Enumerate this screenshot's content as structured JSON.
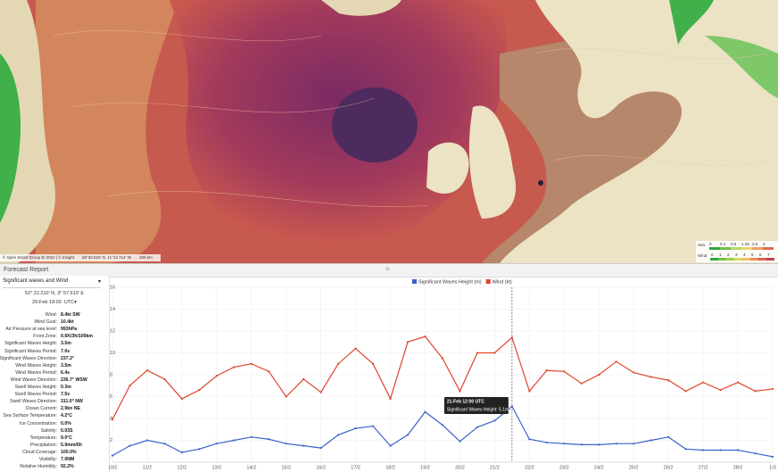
{
  "map": {
    "attribution": "© Spire Smart Group El 2022 | © Insight",
    "coordinates": "58°33.522' N, 11°13.714' W",
    "scale": "100 km",
    "legend": {
      "sea_label": "Sea",
      "sea_ticks": [
        0,
        0.1,
        0.5,
        1.25,
        2.5,
        4
      ],
      "wind_label": "Wind",
      "wind_ticks": [
        0,
        1,
        2,
        3,
        4,
        5,
        6,
        7
      ]
    }
  },
  "panel": {
    "title": "Forecast Report",
    "selector": "Significant waves and Wind",
    "position": "52° 22.210' N, 3° 57.619' E",
    "time": "20-Feb 18:00",
    "timezone": "UTC",
    "readings": [
      {
        "label": "Wind:",
        "value": "8.4kt SW"
      },
      {
        "label": "Wind Gust:",
        "value": "10.4kt"
      },
      {
        "label": "Air Pressure at sea level:",
        "value": "993hPa"
      },
      {
        "label": "Front Zone:",
        "value": "0.6K/3h/100km"
      },
      {
        "label": "Significant Waves Height:",
        "value": "3.5m"
      },
      {
        "label": "Significant Waves Period:",
        "value": "7.0s"
      },
      {
        "label": "Significant Waves Direction:",
        "value": "237.2°"
      },
      {
        "label": "Wind Waves Height:",
        "value": "3.5m"
      },
      {
        "label": "Wind Waves Period:",
        "value": "6.4s"
      },
      {
        "label": "Wind Waves Direction:",
        "value": "236.7° WSW"
      },
      {
        "label": "Swell Waves Height:",
        "value": "0.3m"
      },
      {
        "label": "Swell Waves Period:",
        "value": "7.5s"
      },
      {
        "label": "Swell Waves Direction:",
        "value": "311.0° NW"
      },
      {
        "label": "Ocean Current:",
        "value": "2.9kn NE"
      },
      {
        "label": "Sea Surface Temperature:",
        "value": "4.2°C"
      },
      {
        "label": "Ice Concentration:",
        "value": "0.0%"
      },
      {
        "label": "Salinity:",
        "value": "0.03S"
      },
      {
        "label": "Temperature:",
        "value": "9.0°C"
      },
      {
        "label": "Precipitation:",
        "value": "5.9mm/6h"
      },
      {
        "label": "Cloud Coverage:",
        "value": "100.0%"
      },
      {
        "label": "Visibility:",
        "value": "7.0NM"
      },
      {
        "label": "Relative Humidity:",
        "value": "92.2%"
      }
    ]
  },
  "chart_data": {
    "type": "line",
    "grid": true,
    "legend": "top",
    "x": [
      0,
      0.5,
      1,
      1.5,
      2,
      2.5,
      3,
      3.5,
      4,
      4.5,
      5,
      5.5,
      6,
      6.5,
      7,
      7.5,
      8,
      8.5,
      9,
      9.5,
      10,
      10.5,
      11,
      11.5,
      12,
      12.5,
      13,
      13.5,
      14,
      14.5,
      15,
      15.5,
      16,
      16.5,
      17,
      17.5,
      18,
      18.5,
      19
    ],
    "xlim": [
      0,
      19
    ],
    "xticks": [
      {
        "value": 0,
        "label": "10/2"
      },
      {
        "value": 1,
        "label": "11/2"
      },
      {
        "value": 2,
        "label": "12/2"
      },
      {
        "value": 3,
        "label": "13/2"
      },
      {
        "value": 4,
        "label": "14/2"
      },
      {
        "value": 5,
        "label": "15/2"
      },
      {
        "value": 6,
        "label": "16/2"
      },
      {
        "value": 7,
        "label": "17/2"
      },
      {
        "value": 8,
        "label": "18/2"
      },
      {
        "value": 9,
        "label": "19/2"
      },
      {
        "value": 10,
        "label": "20/2"
      },
      {
        "value": 11,
        "label": "21/2"
      },
      {
        "value": 12,
        "label": "22/2"
      },
      {
        "value": 13,
        "label": "23/2"
      },
      {
        "value": 14,
        "label": "24/2"
      },
      {
        "value": 15,
        "label": "25/2"
      },
      {
        "value": 16,
        "label": "26/2"
      },
      {
        "value": 17,
        "label": "27/2"
      },
      {
        "value": 18,
        "label": "28/2"
      },
      {
        "value": 19,
        "label": "1/3"
      }
    ],
    "ylim": [
      0,
      16
    ],
    "yticks": [
      2,
      4,
      6,
      8,
      10,
      12,
      14,
      16
    ],
    "series": [
      {
        "name": "Significant Waves Height (m)",
        "color": "#3a62c8",
        "values": [
          0.6,
          1.5,
          2.0,
          1.7,
          0.9,
          1.2,
          1.7,
          2.0,
          2.3,
          2.1,
          1.7,
          1.5,
          1.3,
          2.5,
          3.1,
          3.3,
          1.5,
          2.5,
          4.6,
          3.4,
          1.9,
          3.2,
          3.8,
          5.1,
          2.1,
          1.8,
          1.7,
          1.6,
          1.6,
          1.7,
          1.7,
          2.0,
          2.3,
          1.2,
          1.1,
          1.1,
          1.1,
          0.8,
          0.5
        ]
      },
      {
        "name": "Wind (kt)",
        "color": "#e0452b",
        "values": [
          3.9,
          7.0,
          8.4,
          7.6,
          5.8,
          6.6,
          7.9,
          8.7,
          9.0,
          8.3,
          6.0,
          7.6,
          6.4,
          9.0,
          10.4,
          9.0,
          5.8,
          11.0,
          11.5,
          9.5,
          6.5,
          10.0,
          10.0,
          11.4,
          6.5,
          8.4,
          8.3,
          7.2,
          8.0,
          9.2,
          8.2,
          7.8,
          7.5,
          6.5,
          7.3,
          6.6,
          7.3,
          6.5,
          6.7
        ]
      }
    ],
    "tooltip": {
      "title": "21-Feb 12:00 UTC",
      "label": "Significant Waves Height: 5.1m"
    }
  }
}
